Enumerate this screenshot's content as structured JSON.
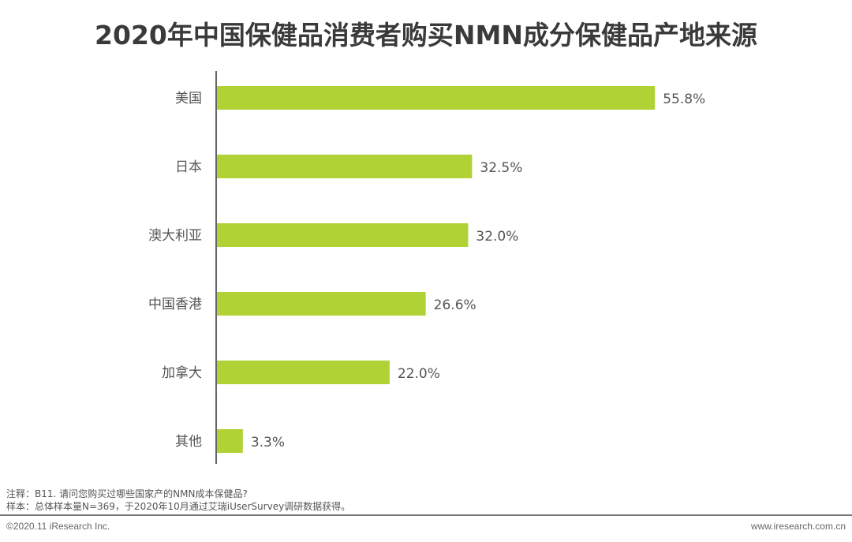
{
  "title": "2020年中国保健品消费者购买NMN成分保健品产地来源",
  "chart_data": {
    "type": "bar",
    "orientation": "horizontal",
    "title": "2020年中国保健品消费者购买NMN成分保健品产地来源",
    "categories": [
      "美国",
      "日本",
      "澳大利亚",
      "中国香港",
      "加拿大",
      "其他"
    ],
    "values": [
      55.8,
      32.5,
      32.0,
      26.6,
      22.0,
      3.3
    ],
    "labels": [
      "55.8%",
      "32.5%",
      "32.0%",
      "26.6%",
      "22.0%",
      "3.3%"
    ],
    "xlabel": "",
    "ylabel": "",
    "xlim": [
      0,
      60
    ],
    "grid": false,
    "bar_color": "#b1d235"
  },
  "notes": {
    "note": "注释：B11. 请问您购买过哪些国家产的NMN成本保健品?",
    "sample": "样本：总体样本量N=369，于2020年10月通过艾瑞iUserSurvey调研数据获得。"
  },
  "footer": {
    "copyright": "©2020.11 iResearch Inc.",
    "url": "www.iresearch.com.cn"
  }
}
